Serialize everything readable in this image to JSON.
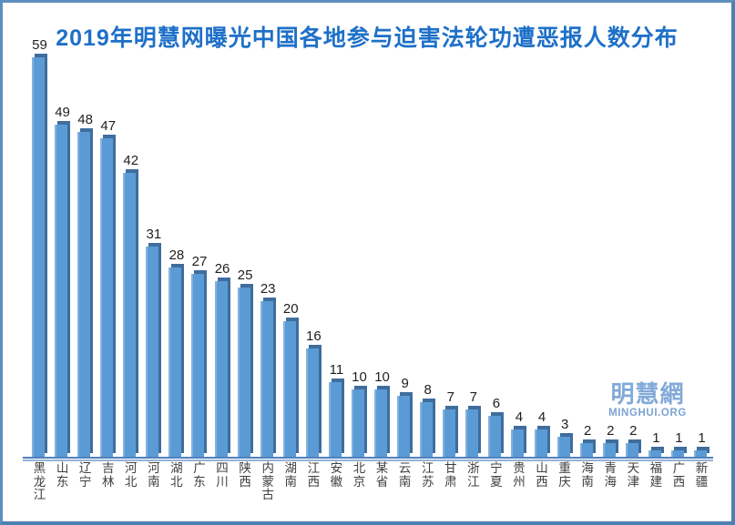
{
  "frame": {
    "border_color": "#5d8fbe",
    "border_bottom_color": "#4d80b2",
    "background": "#ffffff"
  },
  "chart_data": {
    "type": "bar",
    "title": "2019年明慧网曝光中国各地参与迫害法轮功遭恶报人数分布",
    "categories": [
      "黑龙江",
      "山东",
      "辽宁",
      "吉林",
      "河北",
      "河南",
      "湖北",
      "广东",
      "四川",
      "陕西",
      "内蒙古",
      "湖南",
      "江西",
      "安徽",
      "北京",
      "某省",
      "云南",
      "江苏",
      "甘肃",
      "浙江",
      "宁夏",
      "贵州",
      "山西",
      "重庆",
      "海南",
      "青海",
      "天津",
      "福建",
      "广西",
      "新疆"
    ],
    "values": [
      59,
      49,
      48,
      47,
      42,
      31,
      28,
      27,
      26,
      25,
      23,
      20,
      16,
      11,
      10,
      10,
      9,
      8,
      7,
      7,
      6,
      4,
      4,
      3,
      2,
      2,
      2,
      1,
      1,
      1
    ],
    "ylim": [
      0,
      59
    ],
    "grid": false,
    "legend": false,
    "data_labels": true,
    "bar_style": "3d-box",
    "colors": {
      "title": "#1e70c8",
      "bar_face": "#5b9bd5",
      "bar_highlight": "#84b2df",
      "bar_side": "#3f6d9d",
      "axis_dark": "#4f81bd",
      "axis_light": "#95b3d7",
      "value_label": "#1f1f1f",
      "category_label": "#3f3f3f"
    }
  },
  "watermark": {
    "logo_text": "明慧網",
    "logo_subtext": "MINGHUI.ORG",
    "logo_color": "#82a9d8",
    "subtext_color": "#7ba4d0"
  }
}
